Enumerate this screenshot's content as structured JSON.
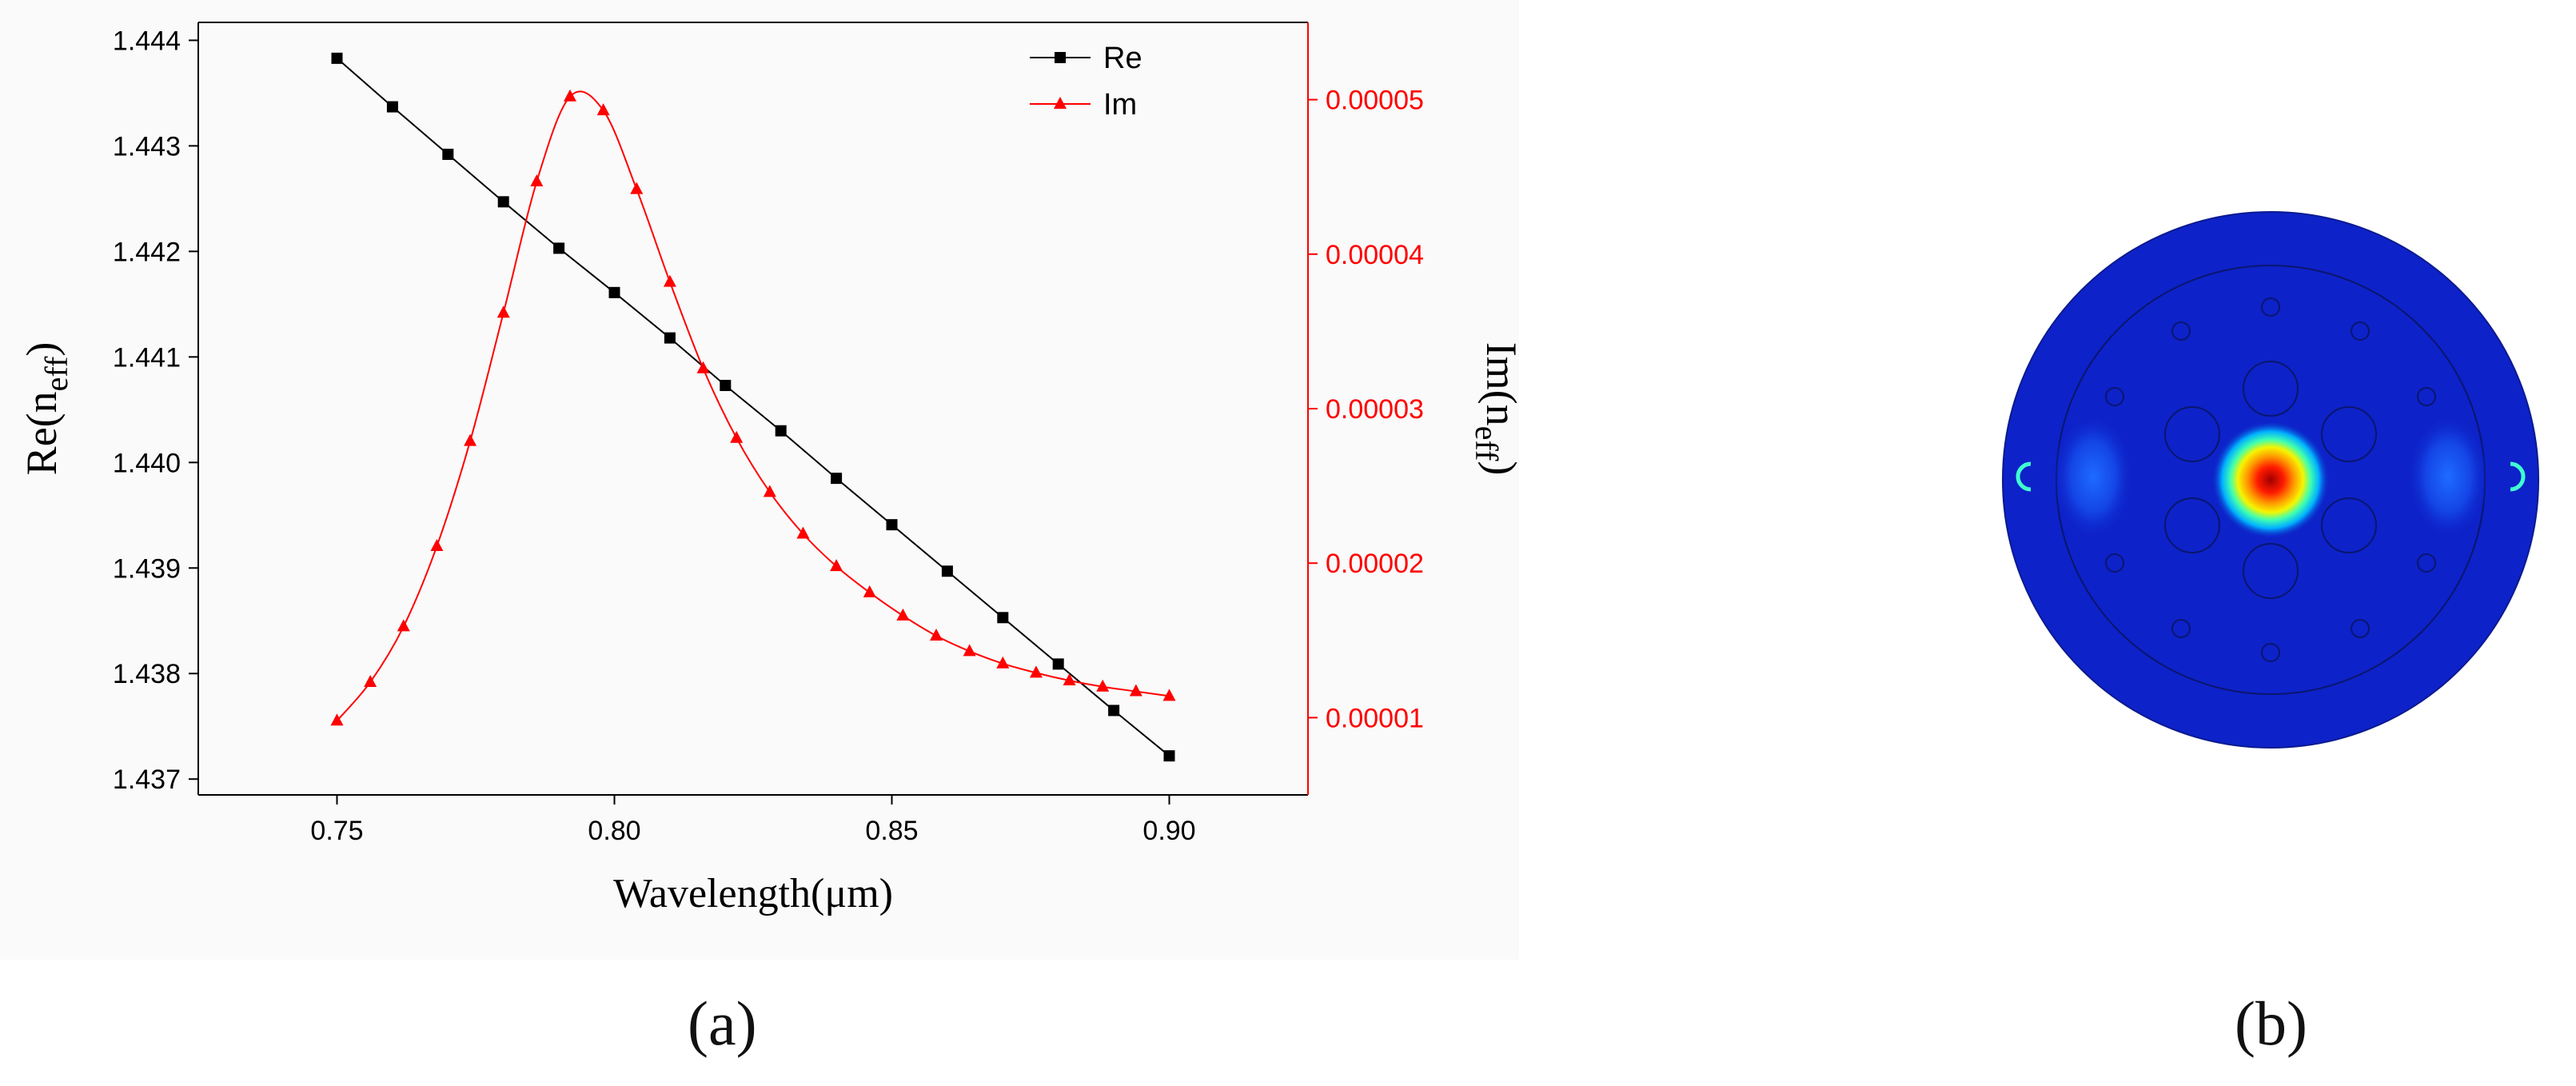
{
  "chart_data": {
    "type": "line",
    "xlabel": "Wavelength(μm)",
    "ylabel_left": {
      "base": "Re(n",
      "sub": "eff",
      "close": ")"
    },
    "ylabel_right": {
      "base": "Im(n",
      "sub": "eff",
      "close": ")"
    },
    "xlim": [
      0.725,
      0.925
    ],
    "ylim_left": [
      1.43685,
      1.44417
    ],
    "ylim_right": [
      5e-06,
      5.5e-05
    ],
    "x_ticks": [
      0.75,
      0.8,
      0.85,
      0.9
    ],
    "x_tick_labels": [
      "0.75",
      "0.80",
      "0.85",
      "0.90"
    ],
    "y_left_ticks": [
      1.437,
      1.438,
      1.439,
      1.44,
      1.441,
      1.442,
      1.443,
      1.444
    ],
    "y_left_tick_labels": [
      "1.437",
      "1.438",
      "1.439",
      "1.440",
      "1.441",
      "1.442",
      "1.443",
      "1.444"
    ],
    "y_right_ticks": [
      1e-05,
      2e-05,
      3e-05,
      4e-05,
      5e-05
    ],
    "y_right_tick_labels": [
      "0.00001",
      "0.00002",
      "0.00003",
      "0.00004",
      "0.00005"
    ],
    "legend_position": "top-right",
    "series": [
      {
        "name": "Re",
        "axis": "left",
        "color": "#000000",
        "marker": "square",
        "x": [
          0.75,
          0.76,
          0.77,
          0.78,
          0.79,
          0.8,
          0.81,
          0.82,
          0.83,
          0.84,
          0.85,
          0.86,
          0.87,
          0.88,
          0.89,
          0.9
        ],
        "y": [
          1.44383,
          1.44337,
          1.44292,
          1.44247,
          1.44203,
          1.44161,
          1.44118,
          1.44073,
          1.4403,
          1.43985,
          1.43941,
          1.43897,
          1.43853,
          1.43809,
          1.43765,
          1.43722
        ]
      },
      {
        "name": "Im",
        "axis": "right",
        "color": "#ff0000",
        "marker": "triangle",
        "x": [
          0.75,
          0.756,
          0.762,
          0.768,
          0.774,
          0.78,
          0.786,
          0.792,
          0.798,
          0.804,
          0.81,
          0.816,
          0.822,
          0.828,
          0.834,
          0.84,
          0.846,
          0.852,
          0.858,
          0.864,
          0.87,
          0.876,
          0.882,
          0.888,
          0.894,
          0.9
        ],
        "y": [
          9.8e-06,
          1.23e-05,
          1.59e-05,
          2.11e-05,
          2.79e-05,
          3.62e-05,
          4.47e-05,
          5.02e-05,
          4.93e-05,
          4.42e-05,
          3.82e-05,
          3.26e-05,
          2.81e-05,
          2.46e-05,
          2.19e-05,
          1.98e-05,
          1.81e-05,
          1.66e-05,
          1.53e-05,
          1.43e-05,
          1.35e-05,
          1.29e-05,
          1.24e-05,
          1.2e-05,
          1.17e-05,
          1.14e-05
        ]
      }
    ]
  },
  "mode_profile": {
    "colormap": "jet",
    "background_color": "#0d22c8",
    "hot_spot_color": "#d40000"
  },
  "labels": {
    "a": "(a)",
    "b": "(b)"
  }
}
